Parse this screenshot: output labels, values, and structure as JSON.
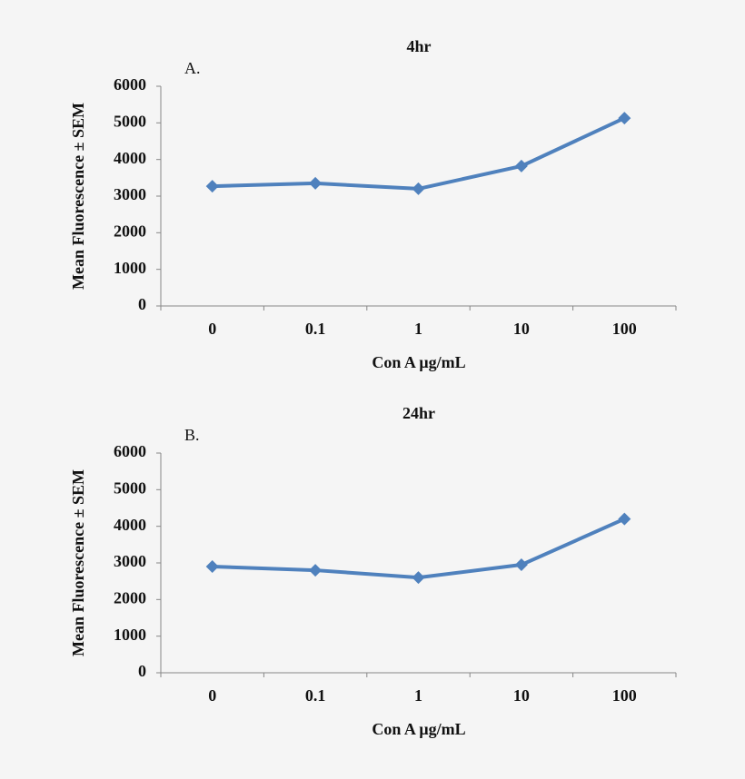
{
  "chart_data": [
    {
      "type": "line",
      "title": "4hr",
      "panel_label": "A.",
      "x_label": "Con A μg/mL",
      "y_label": "Mean Fluorescence ± SEM",
      "categories": [
        "0",
        "0.1",
        "1",
        "10",
        "100"
      ],
      "series": [
        {
          "name": "4hr",
          "color": "#4f81bd",
          "values": [
            3270,
            3350,
            3200,
            3820,
            5130
          ]
        }
      ],
      "ylim": [
        0,
        6000
      ],
      "yticks": [
        0,
        1000,
        2000,
        3000,
        4000,
        5000,
        6000
      ],
      "grid": false
    },
    {
      "type": "line",
      "title": "24hr",
      "panel_label": "B.",
      "x_label": "Con A μg/mL",
      "y_label": "Mean Fluorescence ± SEM",
      "categories": [
        "0",
        "0.1",
        "1",
        "10",
        "100"
      ],
      "series": [
        {
          "name": "24hr",
          "color": "#4f81bd",
          "values": [
            2900,
            2800,
            2600,
            2950,
            4200
          ]
        }
      ],
      "ylim": [
        0,
        6000
      ],
      "yticks": [
        0,
        1000,
        2000,
        3000,
        4000,
        5000,
        6000
      ],
      "grid": false
    }
  ]
}
